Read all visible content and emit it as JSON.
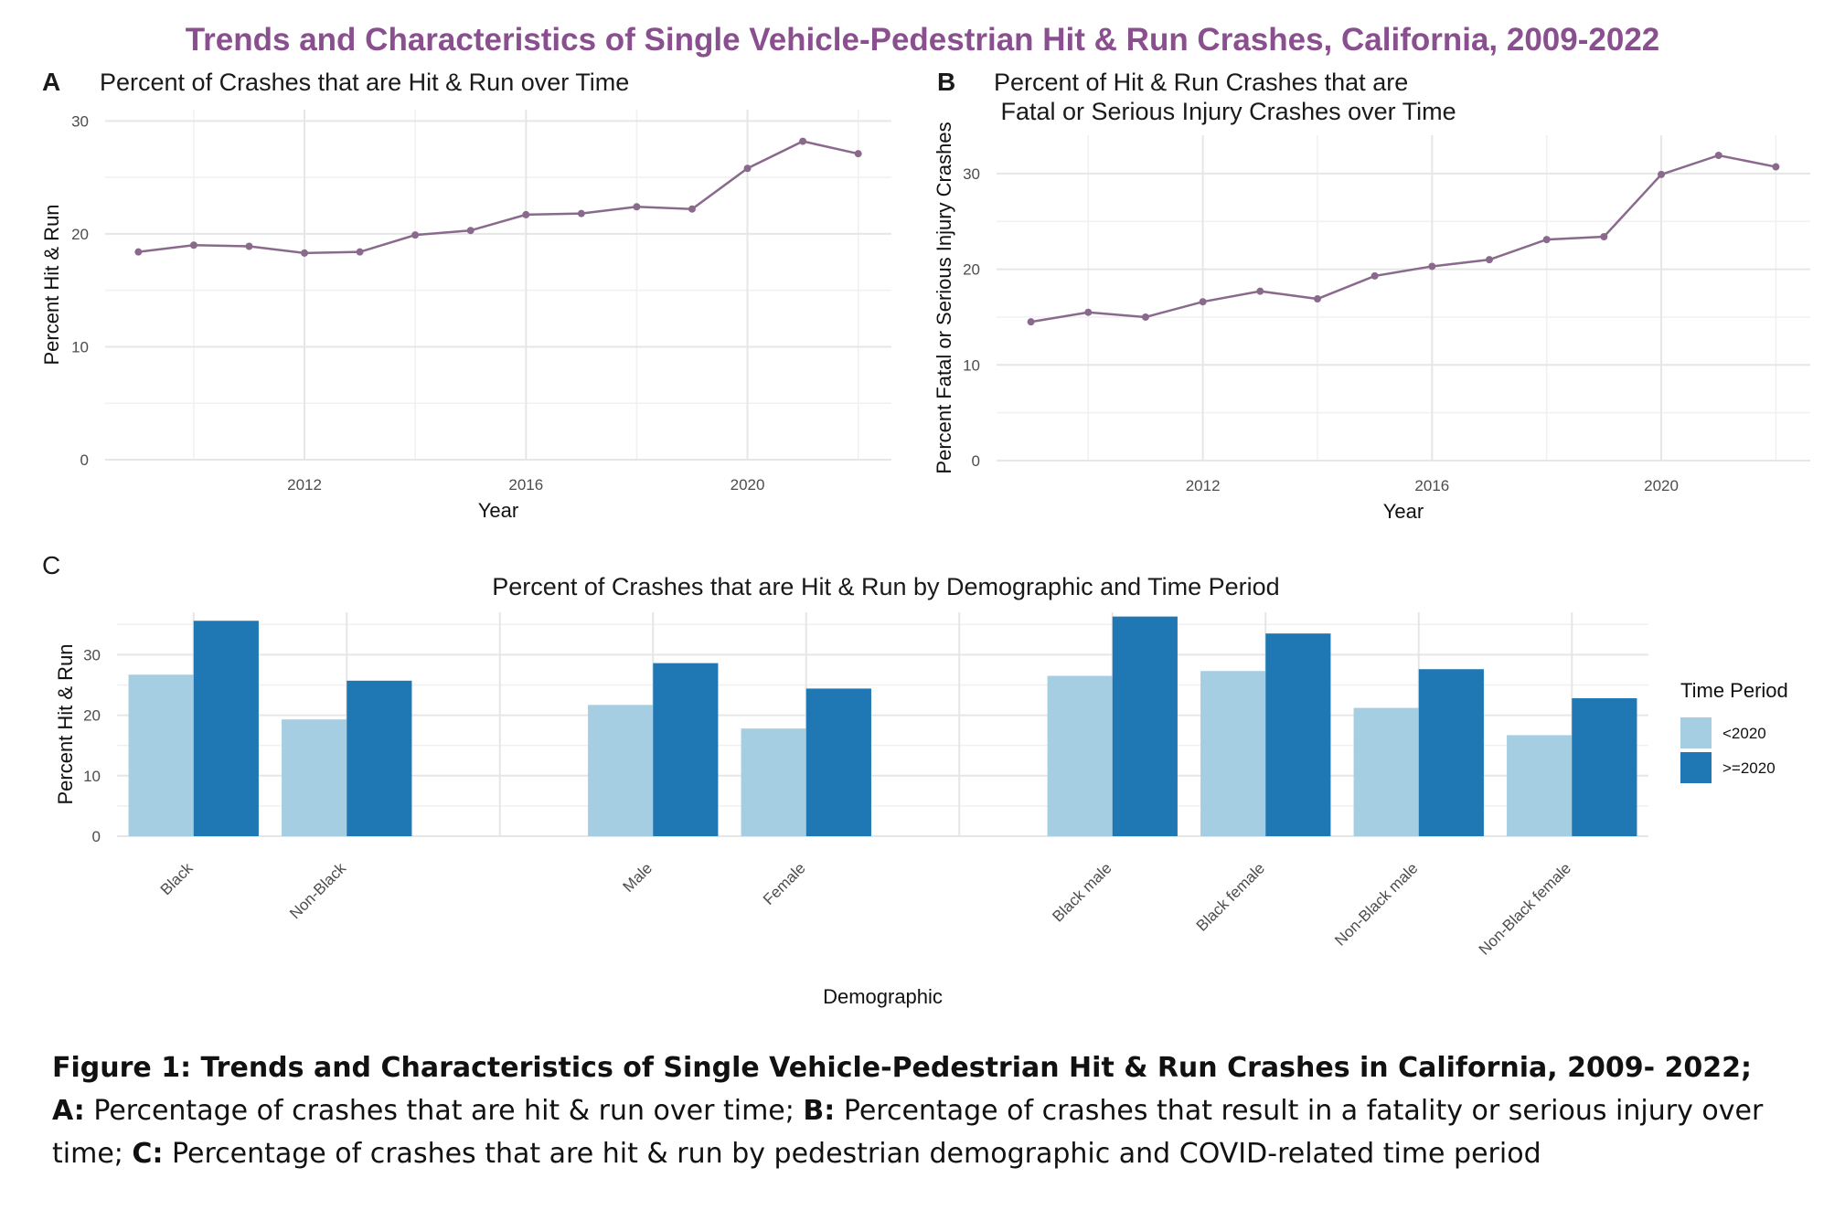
{
  "title": "Trends and Characteristics of Single Vehicle-Pedestrian Hit & Run Crashes, California, 2009-2022",
  "panels": {
    "a": {
      "letter": "A",
      "title": "Percent of Crashes that are Hit & Run over Time"
    },
    "b": {
      "letter": "B",
      "title": "Percent of Hit & Run Crashes that are\n Fatal or Serious Injury Crashes over Time"
    },
    "c": {
      "letter": "C",
      "title": "Percent of Crashes that are Hit & Run by Demographic and Time Period"
    }
  },
  "chart_data": [
    {
      "id": "A",
      "type": "line",
      "title": "Percent of Crashes that are Hit & Run over Time",
      "xlabel": "Year",
      "ylabel": "Percent Hit & Run",
      "x": [
        2009,
        2010,
        2011,
        2012,
        2013,
        2014,
        2015,
        2016,
        2017,
        2018,
        2019,
        2020,
        2021,
        2022
      ],
      "y": [
        18.4,
        19.0,
        18.9,
        18.3,
        18.4,
        19.9,
        20.3,
        21.7,
        21.8,
        22.4,
        22.2,
        25.8,
        28.2,
        27.1
      ],
      "xticks": [
        2012,
        2016,
        2020
      ],
      "yticks": [
        0,
        10,
        20,
        30
      ],
      "xlim": [
        2008.4,
        2022.6
      ],
      "ylim": [
        0,
        31
      ],
      "grid": true,
      "color": "#8a6a8c"
    },
    {
      "id": "B",
      "type": "line",
      "title": "Percent of Hit & Run Crashes that are Fatal or Serious Injury Crashes over Time",
      "xlabel": "Year",
      "ylabel": "Percent Fatal or Serious Injury Crashes",
      "x": [
        2009,
        2010,
        2011,
        2012,
        2013,
        2014,
        2015,
        2016,
        2017,
        2018,
        2019,
        2020,
        2021,
        2022
      ],
      "y": [
        14.5,
        15.5,
        15.0,
        16.6,
        17.7,
        16.9,
        19.3,
        20.3,
        21.0,
        23.1,
        23.4,
        29.9,
        31.9,
        30.7
      ],
      "xticks": [
        2012,
        2016,
        2020
      ],
      "yticks": [
        0,
        10,
        20,
        30
      ],
      "xlim": [
        2008.4,
        2022.6
      ],
      "ylim": [
        0,
        34
      ],
      "grid": true,
      "color": "#8a6a8c"
    },
    {
      "id": "C",
      "type": "bar",
      "title": "Percent of Crashes that are Hit & Run by Demographic and Time Period",
      "xlabel": "Demographic",
      "ylabel": "Percent Hit & Run",
      "legend_title": "Time Period",
      "legend_position": "right",
      "groups": [
        [
          "Black",
          "Non-Black"
        ],
        [
          "Male",
          "Female"
        ],
        [
          "Black male",
          "Black female",
          "Non-Black male",
          "Non-Black female"
        ]
      ],
      "categories": [
        "Black",
        "Non-Black",
        "Male",
        "Female",
        "Black male",
        "Black female",
        "Non-Black male",
        "Non-Black female"
      ],
      "series": [
        {
          "name": "<2020",
          "color": "#a6cee3",
          "values": [
            26.7,
            19.3,
            21.7,
            17.8,
            26.5,
            27.3,
            21.2,
            16.7
          ]
        },
        {
          "name": ">=2020",
          "color": "#1f78b4",
          "values": [
            35.6,
            25.7,
            28.6,
            24.4,
            36.3,
            33.5,
            27.6,
            22.8
          ]
        }
      ],
      "yticks": [
        0,
        10,
        20,
        30
      ],
      "ylim": [
        0,
        37
      ],
      "grid": true
    }
  ],
  "caption": {
    "line1": "Figure 1: Trends and Characteristics of Single Vehicle-Pedestrian Hit & Run Crashes in California, 2009- 2022;",
    "a_label": "A:",
    "a_text": " Percentage of crashes that are hit & run over time; ",
    "b_label": "B:",
    "b_text": " Percentage of crashes that result in a fatality or serious injury over time; ",
    "c_label": "C:",
    "c_text": " Percentage of crashes that are hit & run by pedestrian demographic and COVID-related time period"
  }
}
